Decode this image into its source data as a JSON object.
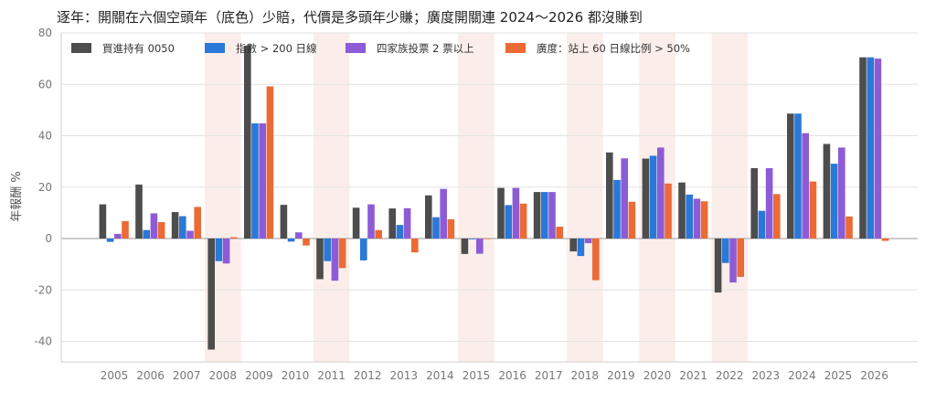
{
  "chart_data": {
    "type": "bar",
    "title": "逐年：開關在六個空頭年（底色）少賠，代價是多頭年少賺；廣度開關連 2024～2026 都沒賺到",
    "xlabel": "",
    "ylabel": "年報酬 %",
    "ylim": [
      -48,
      80
    ],
    "yticks": [
      -40,
      -20,
      0,
      20,
      40,
      60,
      80
    ],
    "grid": "horizontal",
    "legend_position": "top-left",
    "categories": [
      "2005",
      "2006",
      "2007",
      "2008",
      "2009",
      "2010",
      "2011",
      "2012",
      "2013",
      "2014",
      "2015",
      "2016",
      "2017",
      "2018",
      "2019",
      "2020",
      "2021",
      "2022",
      "2023",
      "2024",
      "2025",
      "2026"
    ],
    "shaded_years": [
      "2008",
      "2011",
      "2015",
      "2018",
      "2020",
      "2022"
    ],
    "shade_color": "#fbeeea",
    "series": [
      {
        "name": "買進持有 0050",
        "color": "#4d4d4d",
        "values": [
          13.3,
          21.0,
          10.3,
          -43.2,
          75.0,
          13.1,
          -15.8,
          12.0,
          11.7,
          16.8,
          -6.0,
          19.7,
          18.1,
          -5.0,
          33.5,
          31.1,
          21.8,
          -21.0,
          27.4,
          48.6,
          36.8,
          70.5
        ]
      },
      {
        "name": "指數 > 200 日線",
        "color": "#2a78d8",
        "values": [
          -1.3,
          3.3,
          8.7,
          -8.8,
          44.8,
          -1.2,
          -8.8,
          -8.5,
          5.3,
          8.3,
          -0.3,
          13.0,
          18.1,
          -6.8,
          22.8,
          32.2,
          17.1,
          -9.5,
          10.8,
          48.6,
          29.1,
          70.5
        ]
      },
      {
        "name": "四家族投票 2 票以上",
        "color": "#8e5bd6",
        "values": [
          1.8,
          9.8,
          3.0,
          -9.7,
          44.8,
          2.4,
          -16.4,
          13.3,
          11.8,
          19.3,
          -5.9,
          19.7,
          18.1,
          -1.8,
          31.2,
          35.4,
          15.5,
          -17.1,
          27.4,
          41.0,
          35.4,
          70.0
        ]
      },
      {
        "name": "廣度：站上 60 日線比例 > 50%",
        "color": "#eb6a35",
        "values": [
          6.8,
          6.4,
          12.3,
          0.5,
          59.2,
          -2.7,
          -11.5,
          3.3,
          -5.4,
          7.5,
          0.0,
          13.6,
          4.6,
          -16.2,
          14.3,
          21.4,
          14.5,
          -14.9,
          17.3,
          22.2,
          8.6,
          -0.9
        ]
      }
    ]
  }
}
